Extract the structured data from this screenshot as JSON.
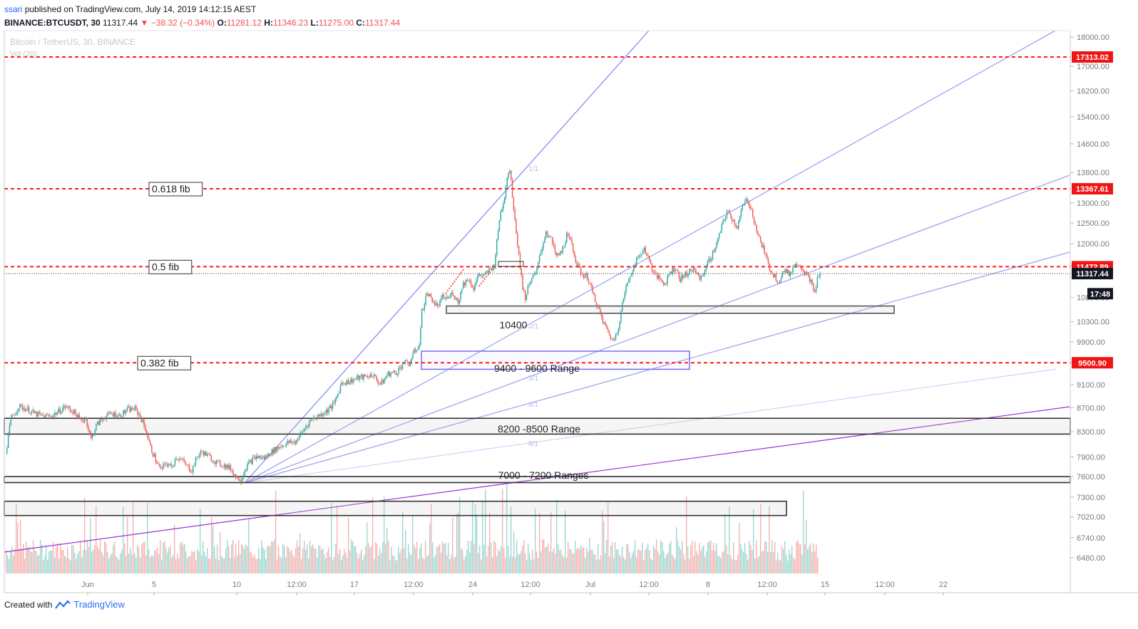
{
  "header": {
    "user": "ssari",
    "published": "published on TradingView.com, July 14, 2019 14:12:15 AEST",
    "symbol": "BINANCE:BTCUSDT, 30",
    "last": "11317.44",
    "change": "▼ −38.32 (−0.34%)",
    "o_label": "O:",
    "o": "11281.12",
    "h_label": "H:",
    "h": "11346.23",
    "l_label": "L:",
    "l": "11275.00",
    "c_label": "C:",
    "c": "11317.44"
  },
  "watermark": {
    "title": "Bitcoin / TetherUS, 30, BINANCE",
    "vol": "Vol (20)"
  },
  "footer": {
    "created": "Created with",
    "brand": "TradingView"
  },
  "colors": {
    "level": "#ff1a1a",
    "fan": "#8c8cf2",
    "purple": "#9b30d9",
    "up": "#26a69a",
    "down": "#ef5350"
  },
  "chart_data": {
    "type": "candlestick",
    "y_axis": {
      "scale": "log",
      "ylim": [
        6300,
        18200
      ],
      "ticks": [
        "18000.00",
        "17000.00",
        "16200.00",
        "15400.00",
        "14600.00",
        "13800.00",
        "13000.00",
        "12500.00",
        "12000.00",
        "11500.00",
        "10800.00",
        "10300.00",
        "9900.00",
        "9500.00",
        "9100.00",
        "8700.00",
        "8300.00",
        "7900.00",
        "7600.00",
        "7300.00",
        "7020.00",
        "6740.00",
        "6480.00"
      ]
    },
    "x_axis": {
      "ticks": [
        "Jun",
        "5",
        "10",
        "12:00",
        "17",
        "12:00",
        "24",
        "12:00",
        "Jul",
        "12:00",
        "8",
        "12:00",
        "15",
        "12:00",
        "22"
      ]
    },
    "price_labels": [
      {
        "text": "17313.02",
        "value": 17313.02,
        "style": "red"
      },
      {
        "text": "13367.61",
        "value": 13367.61,
        "style": "red"
      },
      {
        "text": "11472.89",
        "value": 11472.89,
        "style": "red"
      },
      {
        "text": "11317.44",
        "value": 11317.44,
        "style": "black"
      },
      {
        "text": "17:48",
        "value": 10880,
        "style": "black"
      },
      {
        "text": "9500.90",
        "value": 9500.9,
        "style": "red"
      }
    ],
    "levels": [
      17313.02,
      13367.61,
      11472.89,
      9500.9
    ],
    "fib_labels": [
      {
        "text": "0.618 fib",
        "value": 13367.61
      },
      {
        "text": "0.5 fib",
        "value": 11472.89
      },
      {
        "text": "0.382 fib",
        "value": 9500.9
      }
    ],
    "zones": [
      {
        "label": "10400",
        "top": 10620,
        "bottom": 10470
      },
      {
        "label": "9400 - 9600 Range",
        "top": 9720,
        "bottom": 9380
      },
      {
        "label": "8200 -8500 Range",
        "top": 8520,
        "bottom": 8260
      },
      {
        "label": "7000 - 7200 Ranges",
        "top": 7600,
        "bottom": 7510
      },
      {
        "label": "",
        "top": 7240,
        "bottom": 7040
      }
    ],
    "fan_labels": [
      "1/1",
      "2/1",
      "3/1",
      "4/1",
      "8/1"
    ],
    "price_path": [
      [
        0,
        7950
      ],
      [
        2,
        8500
      ],
      [
        5,
        8720
      ],
      [
        8,
        8680
      ],
      [
        11,
        8600
      ],
      [
        14,
        8560
      ],
      [
        17,
        8550
      ],
      [
        20,
        8620
      ],
      [
        23,
        8720
      ],
      [
        26,
        8640
      ],
      [
        29,
        8480
      ],
      [
        31,
        8520
      ],
      [
        33,
        8180
      ],
      [
        35,
        8400
      ],
      [
        38,
        8540
      ],
      [
        41,
        8600
      ],
      [
        44,
        8560
      ],
      [
        47,
        8660
      ],
      [
        50,
        8680
      ],
      [
        52,
        8560
      ],
      [
        54,
        8350
      ],
      [
        56,
        8050
      ],
      [
        58,
        7850
      ],
      [
        60,
        7700
      ],
      [
        62,
        7800
      ],
      [
        64,
        7740
      ],
      [
        66,
        7900
      ],
      [
        68,
        7850
      ],
      [
        70,
        7760
      ],
      [
        72,
        7690
      ],
      [
        74,
        7900
      ],
      [
        76,
        7980
      ],
      [
        79,
        7890
      ],
      [
        82,
        7800
      ],
      [
        85,
        7760
      ],
      [
        87,
        7720
      ],
      [
        89,
        7600
      ],
      [
        91,
        7560
      ],
      [
        93,
        7750
      ],
      [
        95,
        7840
      ],
      [
        97,
        7900
      ],
      [
        100,
        7880
      ],
      [
        103,
        7980
      ],
      [
        106,
        8060
      ],
      [
        109,
        8120
      ],
      [
        112,
        8130
      ],
      [
        115,
        8310
      ],
      [
        118,
        8500
      ],
      [
        121,
        8560
      ],
      [
        124,
        8640
      ],
      [
        127,
        8760
      ],
      [
        130,
        9140
      ],
      [
        133,
        9160
      ],
      [
        136,
        9220
      ],
      [
        139,
        9240
      ],
      [
        142,
        9280
      ],
      [
        145,
        9100
      ],
      [
        148,
        9300
      ],
      [
        151,
        9320
      ],
      [
        154,
        9500
      ],
      [
        156,
        9480
      ],
      [
        158,
        9700
      ],
      [
        160,
        9850
      ],
      [
        161,
        10500
      ],
      [
        163,
        10900
      ],
      [
        165,
        10750
      ],
      [
        167,
        10600
      ],
      [
        169,
        10800
      ],
      [
        171,
        10780
      ],
      [
        173,
        10900
      ],
      [
        175,
        10700
      ],
      [
        177,
        11100
      ],
      [
        179,
        11200
      ],
      [
        181,
        11000
      ],
      [
        183,
        11300
      ],
      [
        185,
        11250
      ],
      [
        187,
        11400
      ],
      [
        189,
        11500
      ],
      [
        191,
        12600
      ],
      [
        193,
        13200
      ],
      [
        194,
        13700
      ],
      [
        195,
        13900
      ],
      [
        196,
        13200
      ],
      [
        197,
        12600
      ],
      [
        198,
        12000
      ],
      [
        199,
        11500
      ],
      [
        200,
        11000
      ],
      [
        201,
        10800
      ],
      [
        203,
        11200
      ],
      [
        205,
        11300
      ],
      [
        207,
        11800
      ],
      [
        209,
        12300
      ],
      [
        211,
        12100
      ],
      [
        213,
        11700
      ],
      [
        215,
        11800
      ],
      [
        217,
        12200
      ],
      [
        219,
        12000
      ],
      [
        221,
        11500
      ],
      [
        223,
        11300
      ],
      [
        225,
        11250
      ],
      [
        227,
        10900
      ],
      [
        229,
        10600
      ],
      [
        231,
        10300
      ],
      [
        233,
        10100
      ],
      [
        235,
        9900
      ],
      [
        237,
        10200
      ],
      [
        239,
        10800
      ],
      [
        241,
        11200
      ],
      [
        243,
        11500
      ],
      [
        245,
        11700
      ],
      [
        247,
        11900
      ],
      [
        249,
        11600
      ],
      [
        251,
        11300
      ],
      [
        253,
        11200
      ],
      [
        255,
        11100
      ],
      [
        257,
        11350
      ],
      [
        259,
        11450
      ],
      [
        261,
        11200
      ],
      [
        263,
        11300
      ],
      [
        265,
        11400
      ],
      [
        267,
        11350
      ],
      [
        269,
        11200
      ],
      [
        271,
        11500
      ],
      [
        273,
        11700
      ],
      [
        275,
        12000
      ],
      [
        277,
        12400
      ],
      [
        279,
        12800
      ],
      [
        281,
        12600
      ],
      [
        283,
        12400
      ],
      [
        285,
        12900
      ],
      [
        287,
        13100
      ],
      [
        289,
        12700
      ],
      [
        291,
        12200
      ],
      [
        293,
        11900
      ],
      [
        295,
        11500
      ],
      [
        297,
        11300
      ],
      [
        299,
        11150
      ],
      [
        301,
        11400
      ],
      [
        303,
        11300
      ],
      [
        305,
        11500
      ],
      [
        307,
        11550
      ],
      [
        309,
        11350
      ],
      [
        311,
        11200
      ],
      [
        313,
        10900
      ],
      [
        314,
        11200
      ],
      [
        315,
        11317
      ]
    ],
    "volume_note": "volume histogram at bottom (Vol 20)"
  }
}
